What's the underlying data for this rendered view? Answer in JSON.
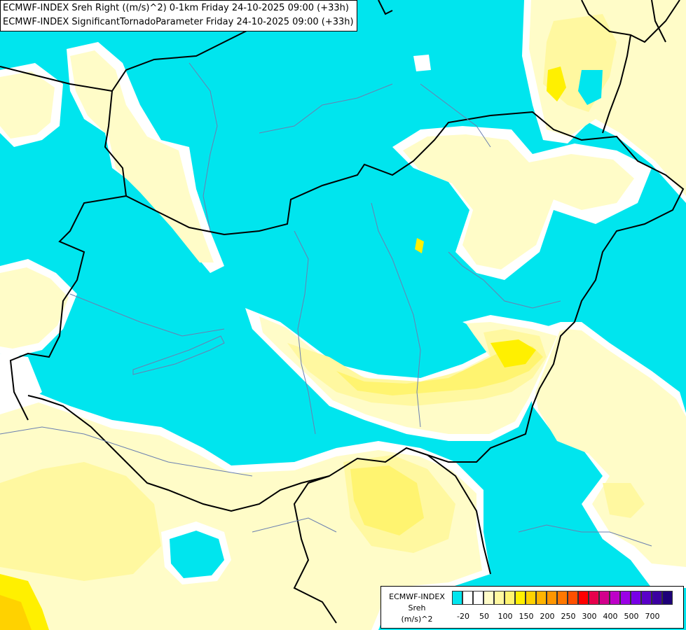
{
  "title": {
    "line1": "ECMWF-INDEX Sreh Right ((m/s)^2) 0-1km Friday 24-10-2025 09:00 (+33h)",
    "line2": "ECMWF-INDEX SignificantTornadoParameter Friday 24-10-2025 09:00 (+33h)"
  },
  "legend": {
    "title_line1": "ECMWF-INDEX",
    "title_line2": "Sreh",
    "title_line3": "(m/s)^2",
    "colors": [
      "#00e5ee",
      "#ffffff",
      "#ffffff",
      "#fffcc8",
      "#fff8a0",
      "#fff470",
      "#fff000",
      "#ffd200",
      "#ffb400",
      "#ff9600",
      "#ff7800",
      "#ff5000",
      "#ff0000",
      "#e6004c",
      "#d2008c",
      "#be00c8",
      "#9b00e6",
      "#7800e6",
      "#5a00c8",
      "#3c00a0",
      "#1e0078"
    ],
    "ticks": [
      "-20",
      "50",
      "100",
      "150",
      "200",
      "250",
      "300",
      "400",
      "500",
      "700"
    ]
  },
  "regions": [
    {
      "name": "pale-yellow-south",
      "class": "sreh-50-100",
      "color": "#fffcc8"
    },
    {
      "name": "yellow-core-south",
      "class": "sreh-100-150",
      "color": "#fff470"
    },
    {
      "name": "cyan-background",
      "class": "sreh-below-20",
      "color": "#00e5ee"
    }
  ]
}
